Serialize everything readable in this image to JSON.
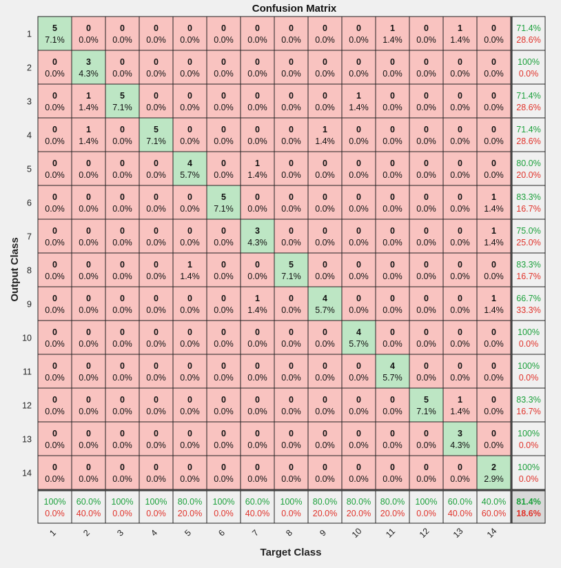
{
  "chart_data": {
    "type": "heatmap",
    "title": "Confusion Matrix",
    "xlabel": "Target Class",
    "ylabel": "Output Class",
    "classes": [
      "1",
      "2",
      "3",
      "4",
      "5",
      "6",
      "7",
      "8",
      "9",
      "10",
      "11",
      "12",
      "13",
      "14"
    ],
    "matrix": [
      [
        5,
        0,
        0,
        0,
        0,
        0,
        0,
        0,
        0,
        0,
        1,
        0,
        1,
        0
      ],
      [
        0,
        3,
        0,
        0,
        0,
        0,
        0,
        0,
        0,
        0,
        0,
        0,
        0,
        0
      ],
      [
        0,
        1,
        5,
        0,
        0,
        0,
        0,
        0,
        0,
        1,
        0,
        0,
        0,
        0
      ],
      [
        0,
        1,
        0,
        5,
        0,
        0,
        0,
        0,
        1,
        0,
        0,
        0,
        0,
        0
      ],
      [
        0,
        0,
        0,
        0,
        4,
        0,
        1,
        0,
        0,
        0,
        0,
        0,
        0,
        0
      ],
      [
        0,
        0,
        0,
        0,
        0,
        5,
        0,
        0,
        0,
        0,
        0,
        0,
        0,
        1
      ],
      [
        0,
        0,
        0,
        0,
        0,
        0,
        3,
        0,
        0,
        0,
        0,
        0,
        0,
        1
      ],
      [
        0,
        0,
        0,
        0,
        1,
        0,
        0,
        5,
        0,
        0,
        0,
        0,
        0,
        0
      ],
      [
        0,
        0,
        0,
        0,
        0,
        0,
        1,
        0,
        4,
        0,
        0,
        0,
        0,
        1
      ],
      [
        0,
        0,
        0,
        0,
        0,
        0,
        0,
        0,
        0,
        4,
        0,
        0,
        0,
        0
      ],
      [
        0,
        0,
        0,
        0,
        0,
        0,
        0,
        0,
        0,
        0,
        4,
        0,
        0,
        0
      ],
      [
        0,
        0,
        0,
        0,
        0,
        0,
        0,
        0,
        0,
        0,
        0,
        5,
        1,
        0
      ],
      [
        0,
        0,
        0,
        0,
        0,
        0,
        0,
        0,
        0,
        0,
        0,
        0,
        3,
        0
      ],
      [
        0,
        0,
        0,
        0,
        0,
        0,
        0,
        0,
        0,
        0,
        0,
        0,
        0,
        2
      ]
    ],
    "cell_percent": [
      [
        "7.1%",
        "0.0%",
        "0.0%",
        "0.0%",
        "0.0%",
        "0.0%",
        "0.0%",
        "0.0%",
        "0.0%",
        "0.0%",
        "1.4%",
        "0.0%",
        "1.4%",
        "0.0%"
      ],
      [
        "0.0%",
        "4.3%",
        "0.0%",
        "0.0%",
        "0.0%",
        "0.0%",
        "0.0%",
        "0.0%",
        "0.0%",
        "0.0%",
        "0.0%",
        "0.0%",
        "0.0%",
        "0.0%"
      ],
      [
        "0.0%",
        "1.4%",
        "7.1%",
        "0.0%",
        "0.0%",
        "0.0%",
        "0.0%",
        "0.0%",
        "0.0%",
        "1.4%",
        "0.0%",
        "0.0%",
        "0.0%",
        "0.0%"
      ],
      [
        "0.0%",
        "1.4%",
        "0.0%",
        "7.1%",
        "0.0%",
        "0.0%",
        "0.0%",
        "0.0%",
        "1.4%",
        "0.0%",
        "0.0%",
        "0.0%",
        "0.0%",
        "0.0%"
      ],
      [
        "0.0%",
        "0.0%",
        "0.0%",
        "0.0%",
        "5.7%",
        "0.0%",
        "1.4%",
        "0.0%",
        "0.0%",
        "0.0%",
        "0.0%",
        "0.0%",
        "0.0%",
        "0.0%"
      ],
      [
        "0.0%",
        "0.0%",
        "0.0%",
        "0.0%",
        "0.0%",
        "7.1%",
        "0.0%",
        "0.0%",
        "0.0%",
        "0.0%",
        "0.0%",
        "0.0%",
        "0.0%",
        "1.4%"
      ],
      [
        "0.0%",
        "0.0%",
        "0.0%",
        "0.0%",
        "0.0%",
        "0.0%",
        "4.3%",
        "0.0%",
        "0.0%",
        "0.0%",
        "0.0%",
        "0.0%",
        "0.0%",
        "1.4%"
      ],
      [
        "0.0%",
        "0.0%",
        "0.0%",
        "0.0%",
        "1.4%",
        "0.0%",
        "0.0%",
        "7.1%",
        "0.0%",
        "0.0%",
        "0.0%",
        "0.0%",
        "0.0%",
        "0.0%"
      ],
      [
        "0.0%",
        "0.0%",
        "0.0%",
        "0.0%",
        "0.0%",
        "0.0%",
        "1.4%",
        "0.0%",
        "5.7%",
        "0.0%",
        "0.0%",
        "0.0%",
        "0.0%",
        "1.4%"
      ],
      [
        "0.0%",
        "0.0%",
        "0.0%",
        "0.0%",
        "0.0%",
        "0.0%",
        "0.0%",
        "0.0%",
        "0.0%",
        "5.7%",
        "0.0%",
        "0.0%",
        "0.0%",
        "0.0%"
      ],
      [
        "0.0%",
        "0.0%",
        "0.0%",
        "0.0%",
        "0.0%",
        "0.0%",
        "0.0%",
        "0.0%",
        "0.0%",
        "0.0%",
        "5.7%",
        "0.0%",
        "0.0%",
        "0.0%"
      ],
      [
        "0.0%",
        "0.0%",
        "0.0%",
        "0.0%",
        "0.0%",
        "0.0%",
        "0.0%",
        "0.0%",
        "0.0%",
        "0.0%",
        "0.0%",
        "7.1%",
        "1.4%",
        "0.0%"
      ],
      [
        "0.0%",
        "0.0%",
        "0.0%",
        "0.0%",
        "0.0%",
        "0.0%",
        "0.0%",
        "0.0%",
        "0.0%",
        "0.0%",
        "0.0%",
        "0.0%",
        "4.3%",
        "0.0%"
      ],
      [
        "0.0%",
        "0.0%",
        "0.0%",
        "0.0%",
        "0.0%",
        "0.0%",
        "0.0%",
        "0.0%",
        "0.0%",
        "0.0%",
        "0.0%",
        "0.0%",
        "0.0%",
        "2.9%"
      ]
    ],
    "row_summary": [
      [
        "71.4%",
        "28.6%"
      ],
      [
        "100%",
        "0.0%"
      ],
      [
        "71.4%",
        "28.6%"
      ],
      [
        "71.4%",
        "28.6%"
      ],
      [
        "80.0%",
        "20.0%"
      ],
      [
        "83.3%",
        "16.7%"
      ],
      [
        "75.0%",
        "25.0%"
      ],
      [
        "83.3%",
        "16.7%"
      ],
      [
        "66.7%",
        "33.3%"
      ],
      [
        "100%",
        "0.0%"
      ],
      [
        "100%",
        "0.0%"
      ],
      [
        "83.3%",
        "16.7%"
      ],
      [
        "100%",
        "0.0%"
      ],
      [
        "100%",
        "0.0%"
      ]
    ],
    "col_summary": [
      [
        "100%",
        "0.0%"
      ],
      [
        "60.0%",
        "40.0%"
      ],
      [
        "100%",
        "0.0%"
      ],
      [
        "100%",
        "0.0%"
      ],
      [
        "80.0%",
        "20.0%"
      ],
      [
        "100%",
        "0.0%"
      ],
      [
        "60.0%",
        "40.0%"
      ],
      [
        "100%",
        "0.0%"
      ],
      [
        "80.0%",
        "20.0%"
      ],
      [
        "80.0%",
        "20.0%"
      ],
      [
        "80.0%",
        "20.0%"
      ],
      [
        "100%",
        "0.0%"
      ],
      [
        "60.0%",
        "40.0%"
      ],
      [
        "40.0%",
        "60.0%"
      ]
    ],
    "overall": [
      "81.4%",
      "18.6%"
    ],
    "colors": {
      "correct_fill": "#bde6c4",
      "error_fill": "#f9c3c0",
      "summary_fill": "#f0f0f0",
      "overall_fill": "#d9d9d9",
      "correct_text": "#1ca03c",
      "error_text": "#e0322a"
    }
  }
}
